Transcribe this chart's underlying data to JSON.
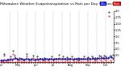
{
  "title": "Milwaukee Weather Evapotranspiration vs Rain per Day (Inches)",
  "title_fontsize": 3.2,
  "background_color": "#ffffff",
  "grid_color": "#aaaaaa",
  "legend_labels": [
    "ETo",
    "Rain"
  ],
  "legend_colors": [
    "#0000cc",
    "#cc0000"
  ],
  "tick_fontsize": 2.5,
  "ylim": [
    0,
    2.0
  ],
  "yticks": [
    0.25,
    0.5,
    0.75,
    1.0,
    1.25,
    1.5,
    1.75,
    2.0
  ],
  "ytick_labels": [
    ".25",
    ".50",
    ".75",
    "1.0",
    "1.25",
    "1.50",
    "1.75",
    "2.0"
  ],
  "n_days": 91,
  "eto_values": [
    0.04,
    0.05,
    0.06,
    0.07,
    0.06,
    0.07,
    0.08,
    0.09,
    0.1,
    0.08,
    0.12,
    0.14,
    0.13,
    0.11,
    0.09,
    0.1,
    0.11,
    0.1,
    0.09,
    0.08,
    0.1,
    0.11,
    0.1,
    0.09,
    0.08,
    0.1,
    0.09,
    0.08,
    0.09,
    0.1,
    0.09,
    0.1,
    0.11,
    0.1,
    0.09,
    0.1,
    0.11,
    0.1,
    0.09,
    0.1,
    0.11,
    0.1,
    0.09,
    0.1,
    0.11,
    0.1,
    0.11,
    0.12,
    0.11,
    0.1,
    0.11,
    0.1,
    0.11,
    0.12,
    0.11,
    0.1,
    0.11,
    0.1,
    0.09,
    0.1,
    0.11,
    0.1,
    0.09,
    0.1,
    0.11,
    0.1,
    0.11,
    0.12,
    0.11,
    0.12,
    0.13,
    0.12,
    0.11,
    0.12,
    0.13,
    0.12,
    0.11,
    0.12,
    0.13,
    0.14,
    0.15,
    0.14,
    0.13,
    0.14,
    0.15,
    0.14,
    0.16,
    0.18,
    0.2,
    0.18,
    0.16
  ],
  "rain_values": [
    0.0,
    0.0,
    0.0,
    0.25,
    0.0,
    0.0,
    0.0,
    0.0,
    0.1,
    0.0,
    0.3,
    0.1,
    0.0,
    0.0,
    0.0,
    0.05,
    0.0,
    0.0,
    0.0,
    0.0,
    0.0,
    0.2,
    0.0,
    0.0,
    0.0,
    0.0,
    0.15,
    0.0,
    0.0,
    0.1,
    0.0,
    0.0,
    0.0,
    0.0,
    0.0,
    0.05,
    0.0,
    0.0,
    0.0,
    0.0,
    0.0,
    0.1,
    0.0,
    0.0,
    0.0,
    0.0,
    0.0,
    0.15,
    0.0,
    0.0,
    0.1,
    0.0,
    0.0,
    0.05,
    0.0,
    0.0,
    0.0,
    0.1,
    0.0,
    0.0,
    0.0,
    0.0,
    0.05,
    0.0,
    0.0,
    0.0,
    0.0,
    0.1,
    0.0,
    0.0,
    0.05,
    0.0,
    0.0,
    0.1,
    0.0,
    0.0,
    0.05,
    0.0,
    0.0,
    0.1,
    0.05,
    0.0,
    0.0,
    0.1,
    0.05,
    0.0,
    0.0,
    1.8,
    0.05,
    0.0,
    0.1
  ],
  "black_values": [
    0.04,
    0.05,
    0.06,
    0.32,
    0.06,
    0.07,
    0.08,
    0.09,
    0.2,
    0.08,
    0.42,
    0.24,
    0.13,
    0.11,
    0.09,
    0.15,
    0.11,
    0.1,
    0.09,
    0.08,
    0.1,
    0.31,
    0.1,
    0.09,
    0.08,
    0.1,
    0.24,
    0.08,
    0.09,
    0.2,
    0.09,
    0.1,
    0.11,
    0.1,
    0.09,
    0.15,
    0.11,
    0.1,
    0.09,
    0.1,
    0.11,
    0.2,
    0.09,
    0.1,
    0.11,
    0.1,
    0.11,
    0.27,
    0.11,
    0.1,
    0.21,
    0.1,
    0.11,
    0.17,
    0.11,
    0.1,
    0.11,
    0.2,
    0.09,
    0.1,
    0.11,
    0.1,
    0.14,
    0.1,
    0.11,
    0.1,
    0.11,
    0.22,
    0.11,
    0.12,
    0.18,
    0.12,
    0.11,
    0.22,
    0.13,
    0.12,
    0.16,
    0.12,
    0.13,
    0.24,
    0.2,
    0.14,
    0.13,
    0.24,
    0.2,
    0.14,
    0.16,
    1.98,
    0.25,
    0.18,
    0.26
  ],
  "vlines_x": [
    7,
    14,
    21,
    28,
    35,
    42,
    49,
    56,
    63,
    70,
    77,
    84
  ],
  "xtick_positions": [
    0,
    1,
    2,
    3,
    4,
    5,
    6,
    7,
    8,
    9,
    10,
    11,
    12,
    13,
    14,
    15,
    16,
    17,
    18,
    19,
    20,
    21,
    22,
    23,
    24,
    25,
    26,
    27,
    28,
    29,
    30,
    31,
    32,
    33,
    34,
    35,
    36,
    37,
    38,
    39,
    40,
    41,
    42,
    43,
    44,
    45,
    46,
    47,
    48,
    49,
    50,
    51,
    52,
    53,
    54,
    55,
    56,
    57,
    58,
    59,
    60,
    61,
    62,
    63,
    64,
    65,
    66,
    67,
    68,
    69,
    70,
    71,
    72,
    73,
    74,
    75,
    76,
    77,
    78,
    79,
    80,
    81,
    82,
    83,
    84,
    85,
    86,
    87,
    88,
    89,
    90
  ],
  "month_ticks": [
    0,
    14,
    28,
    42,
    56,
    70,
    84
  ],
  "month_labels": [
    "Apr",
    "May",
    "Jun",
    "Jul",
    "Aug",
    "Sep",
    "Oct"
  ]
}
